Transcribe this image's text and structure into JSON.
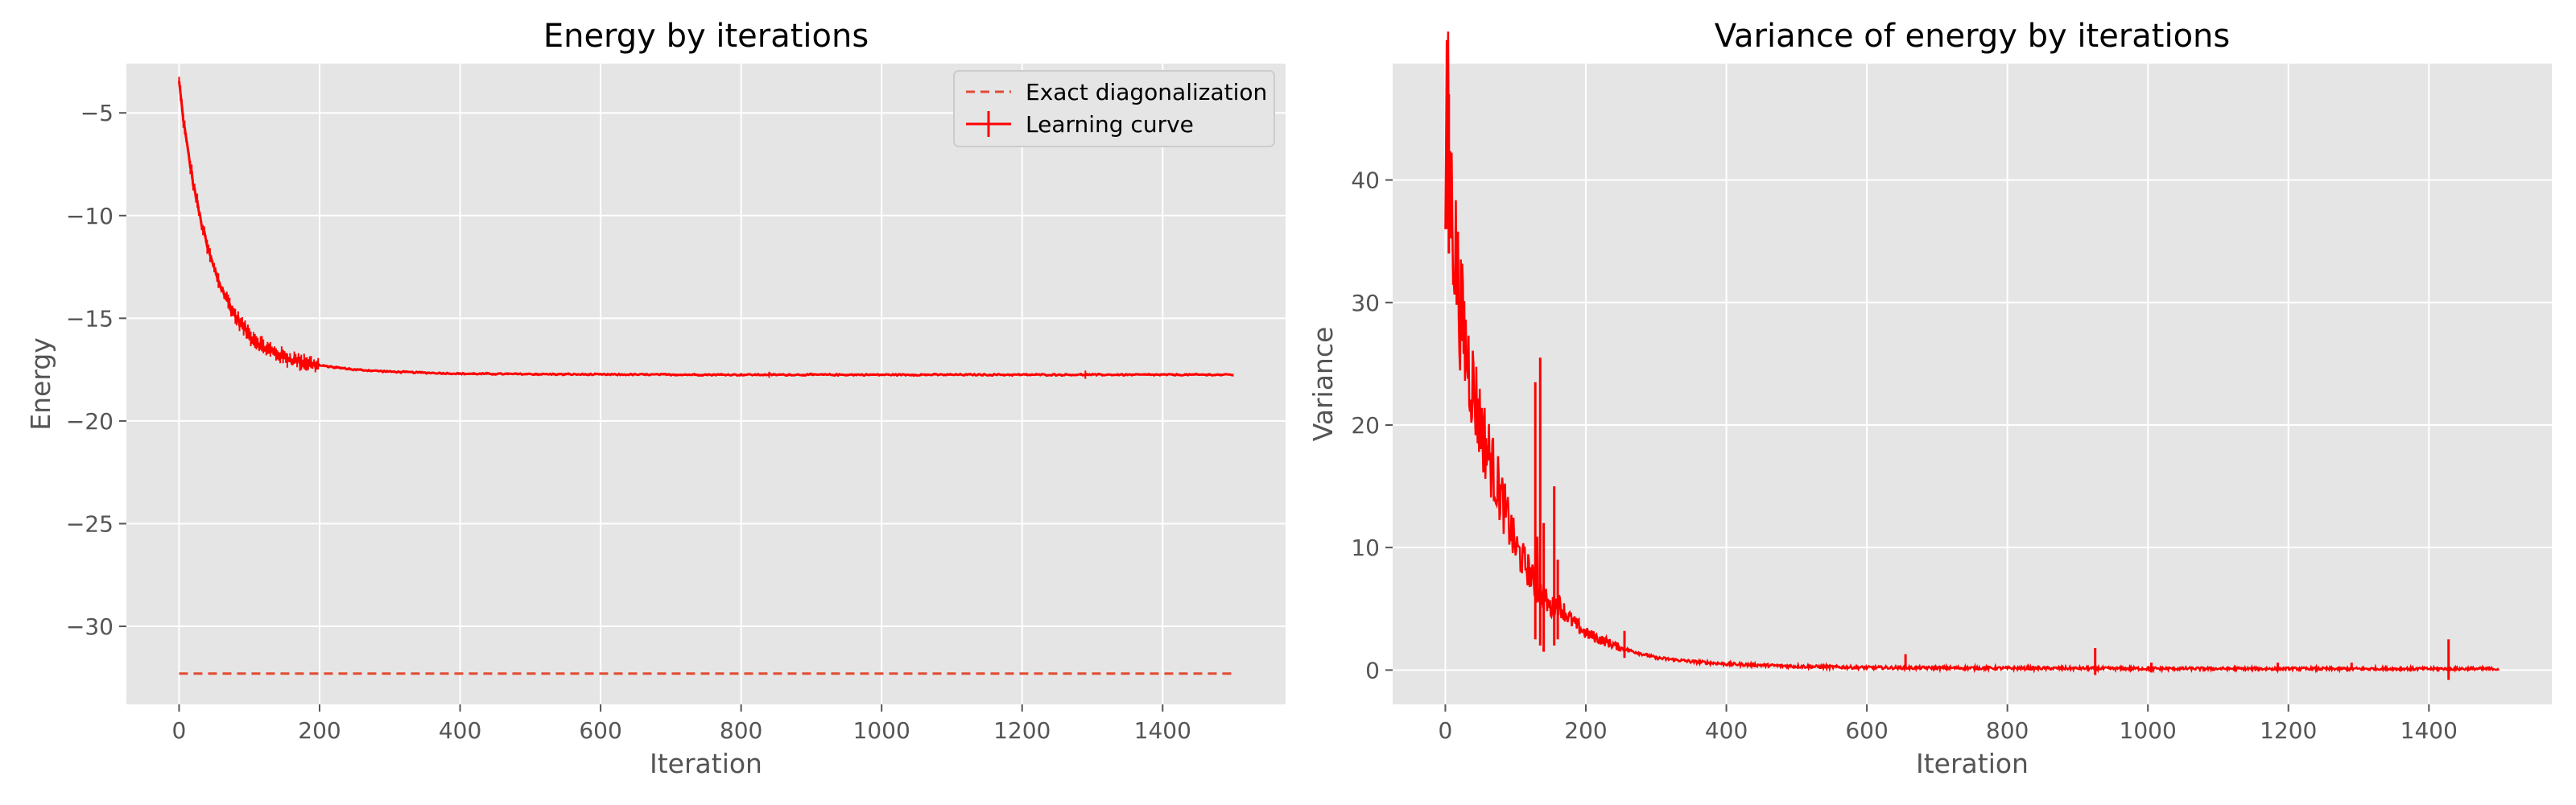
{
  "chart_data": [
    {
      "type": "line",
      "title": "Energy by iterations",
      "xlabel": "Iteration",
      "ylabel": "Energy",
      "xlim": [
        -75,
        1575
      ],
      "ylim": [
        -33.8,
        -2.6
      ],
      "xticks": [
        0,
        200,
        400,
        600,
        800,
        1000,
        1200,
        1400
      ],
      "xtick_labels": [
        "0",
        "200",
        "400",
        "600",
        "800",
        "1000",
        "1200",
        "1400"
      ],
      "yticks": [
        -5,
        -10,
        -15,
        -20,
        -25,
        -30
      ],
      "ytick_labels": [
        "−5",
        "−10",
        "−15",
        "−20",
        "−25",
        "−30"
      ],
      "grid": true,
      "legend": {
        "position": "top-right",
        "entries": [
          {
            "label": "Exact diagonalization",
            "style": "dashed",
            "color": "#E24A33"
          },
          {
            "label": "Learning curve",
            "style": "errorbar",
            "color": "#FF0000"
          }
        ]
      },
      "series": [
        {
          "name": "Exact diagonalization",
          "color": "#E24A33",
          "style": "dashed",
          "x": [
            0,
            1500
          ],
          "y": [
            -32.3,
            -32.3
          ]
        },
        {
          "name": "Learning curve",
          "color": "#FF0000",
          "style": "errorbar",
          "x": [
            0,
            5,
            10,
            20,
            30,
            40,
            50,
            60,
            80,
            100,
            120,
            150,
            200,
            250,
            300,
            400,
            500,
            600,
            800,
            1000,
            1200,
            1400,
            1500
          ],
          "y": [
            -3.5,
            -5.0,
            -6.3,
            -8.4,
            -10.1,
            -11.5,
            -12.6,
            -13.5,
            -14.9,
            -15.8,
            -16.4,
            -16.9,
            -17.3,
            -17.5,
            -17.6,
            -17.7,
            -17.72,
            -17.74,
            -17.75,
            -17.75,
            -17.75,
            -17.75,
            -17.75
          ]
        }
      ]
    },
    {
      "type": "line",
      "title": "Variance of energy by iterations",
      "xlabel": "Iteration",
      "ylabel": "Variance",
      "xlim": [
        -75,
        1575
      ],
      "ylim": [
        -2.8,
        49.5
      ],
      "xticks": [
        0,
        200,
        400,
        600,
        800,
        1000,
        1200,
        1400
      ],
      "xtick_labels": [
        "0",
        "200",
        "400",
        "600",
        "800",
        "1000",
        "1200",
        "1400"
      ],
      "yticks": [
        0,
        10,
        20,
        30,
        40
      ],
      "ytick_labels": [
        "0",
        "10",
        "20",
        "30",
        "40"
      ],
      "grid": true,
      "series": [
        {
          "color": "#FF0000",
          "style": "line",
          "x": [
            0,
            3,
            6,
            10,
            15,
            20,
            30,
            40,
            50,
            60,
            70,
            80,
            90,
            100,
            110,
            120,
            130,
            135,
            140,
            150,
            160,
            180,
            200,
            250,
            300,
            350,
            400,
            500,
            600,
            800,
            1000,
            1200,
            1400,
            1500
          ],
          "y": [
            39.0,
            47.0,
            41.0,
            37.0,
            34.0,
            30.0,
            26.0,
            23.0,
            20.0,
            18.0,
            16.0,
            14.0,
            12.0,
            10.0,
            9.0,
            8.0,
            6.5,
            24.0,
            6.0,
            5.0,
            5.5,
            4.0,
            3.0,
            1.8,
            1.0,
            0.7,
            0.5,
            0.3,
            0.2,
            0.15,
            0.12,
            0.1,
            0.1,
            0.1
          ]
        }
      ]
    }
  ]
}
